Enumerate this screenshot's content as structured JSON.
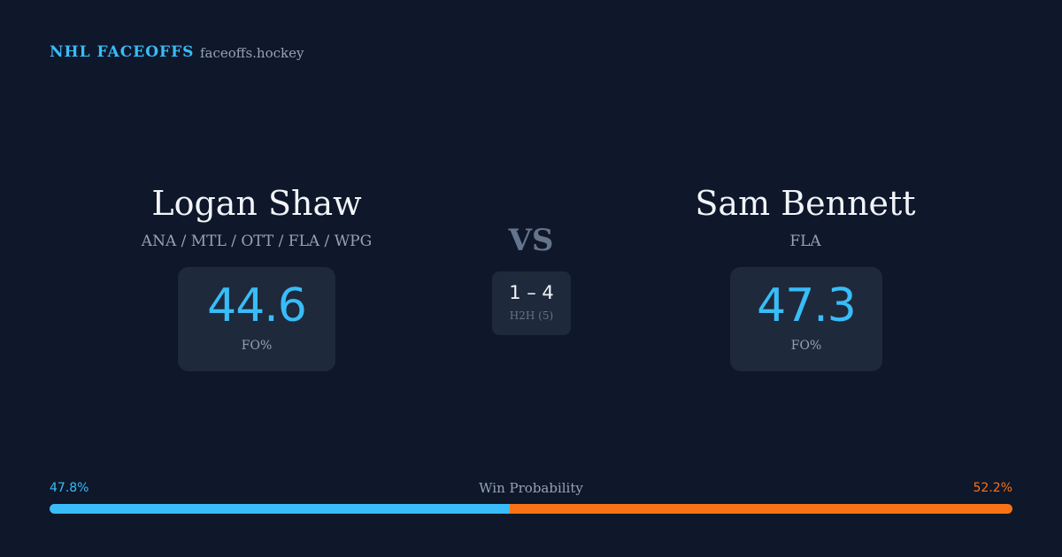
{
  "header": {
    "brand": "NHL FACEOFFS",
    "site": "faceoffs.hockey"
  },
  "players": [
    {
      "name": "Logan Shaw",
      "teams": "ANA / MTL / OTT / FLA / WPG",
      "fo_pct": 44.6,
      "fo_label": "FO%"
    },
    {
      "name": "Sam Bennett",
      "teams": "FLA",
      "fo_pct": 47.3,
      "fo_label": "FO%"
    }
  ],
  "vs": "VS",
  "h2h": {
    "record": "1 – 4",
    "label": "H2H (5)"
  },
  "win_probability": {
    "title": "Win Probability",
    "values": [
      47.8,
      52.2
    ],
    "value_labels": [
      "47.8%",
      "52.2%"
    ],
    "colors": [
      "#38bdf8",
      "#f97316"
    ]
  }
}
